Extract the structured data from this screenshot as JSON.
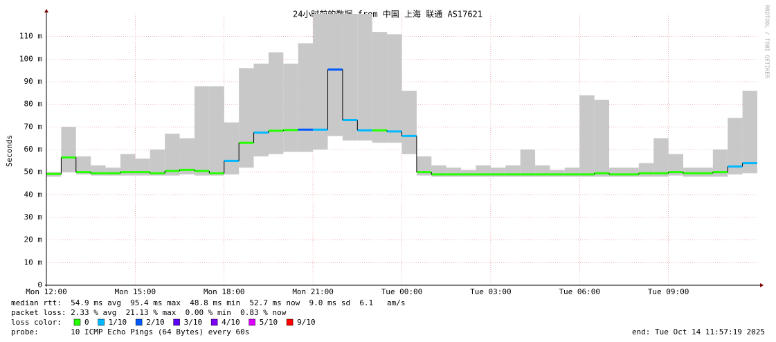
{
  "chart_data": {
    "type": "smokeping",
    "title": "24小时前的数据 from 中国 上海 联通 AS17621",
    "y_label": "Seconds",
    "watermark": "RRDTOOL / TOBI OETIKER",
    "xlim": [
      0,
      24
    ],
    "xticks": [
      {
        "value": 0,
        "label": "Mon 12:00"
      },
      {
        "value": 3,
        "label": "Mon 15:00"
      },
      {
        "value": 6,
        "label": "Mon 18:00"
      },
      {
        "value": 9,
        "label": "Mon 21:00"
      },
      {
        "value": 12,
        "label": "Tue 00:00"
      },
      {
        "value": 15,
        "label": "Tue 03:00"
      },
      {
        "value": 18,
        "label": "Tue 06:00"
      },
      {
        "value": 21,
        "label": "Tue 09:00"
      }
    ],
    "ylim": [
      0,
      120
    ],
    "yticks": [
      0,
      {
        "value": 10,
        "label": "10 m"
      },
      {
        "value": 20,
        "label": "20 m"
      },
      {
        "value": 30,
        "label": "30 m"
      },
      {
        "value": 40,
        "label": "40 m"
      },
      {
        "value": 50,
        "label": "50 m"
      },
      {
        "value": 60,
        "label": "60 m"
      },
      {
        "value": 70,
        "label": "70 m"
      },
      {
        "value": 80,
        "label": "80 m"
      },
      {
        "value": 90,
        "label": "90 m"
      },
      {
        "value": 100,
        "label": "100 m"
      },
      {
        "value": 110,
        "label": "110 m"
      }
    ],
    "grid": true,
    "x": [
      0,
      0.5,
      1,
      1.5,
      2,
      2.5,
      3,
      3.5,
      4,
      4.5,
      5,
      5.5,
      6,
      6.5,
      7,
      7.5,
      8,
      8.5,
      9,
      9.5,
      10,
      10.5,
      11,
      11.5,
      12,
      12.5,
      13,
      13.5,
      14,
      14.5,
      15,
      15.5,
      16,
      16.5,
      17,
      17.5,
      18,
      18.5,
      19,
      19.5,
      20,
      20.5,
      21,
      21.5,
      22,
      22.5,
      23,
      23.5
    ],
    "median": [
      49.2,
      56.5,
      50,
      49.5,
      49.5,
      50,
      50,
      49.5,
      50.5,
      51,
      50.5,
      49.5,
      55,
      63,
      67.5,
      68.3,
      68.6,
      68.8,
      68.8,
      95.4,
      73,
      68.5,
      68.5,
      68,
      66,
      50,
      49,
      49,
      49,
      49,
      49,
      49,
      49,
      49,
      49,
      49,
      49,
      49.5,
      49,
      49,
      49.5,
      49.5,
      50,
      49.5,
      49.5,
      50,
      52.5,
      54
    ],
    "min": [
      48,
      50,
      49,
      48.5,
      48.5,
      48.5,
      48.5,
      48.5,
      48.5,
      49,
      48.5,
      48.5,
      49,
      52,
      57,
      58,
      59,
      59,
      60,
      66,
      64,
      64,
      63,
      63,
      58,
      48.5,
      48,
      48,
      48,
      48,
      48,
      48,
      48,
      48,
      48,
      48,
      48,
      48,
      48,
      48,
      48,
      48,
      48.5,
      48,
      48,
      48,
      49,
      49.5
    ],
    "max": [
      50,
      70,
      57,
      53,
      52,
      58,
      56,
      60,
      67,
      65,
      88,
      88,
      72,
      96,
      98,
      103,
      98,
      107,
      120,
      120,
      120,
      120,
      112,
      111,
      86,
      57,
      53,
      52,
      51,
      53,
      52,
      53,
      60,
      53,
      51,
      52,
      84,
      82,
      52,
      52,
      54,
      65,
      58,
      52,
      52,
      60,
      74,
      86
    ],
    "loss": [
      0,
      0,
      0,
      0,
      0,
      0,
      0,
      0,
      0,
      0,
      0,
      0,
      1,
      0,
      1,
      0,
      0,
      2,
      1,
      2,
      1,
      1,
      0,
      1,
      1,
      0,
      0,
      0,
      0,
      0,
      0,
      0,
      0,
      0,
      0,
      0,
      0,
      0,
      0,
      0,
      0,
      0,
      0,
      0,
      0,
      0,
      1,
      1
    ],
    "smoke_color": "#c8c8c8",
    "loss_legend_title": "loss color:",
    "loss_legend": [
      {
        "label": "0",
        "color": "#26ff00"
      },
      {
        "label": "1/10",
        "color": "#00b8ff"
      },
      {
        "label": "2/10",
        "color": "#0059ff"
      },
      {
        "label": "3/10",
        "color": "#5e00ff"
      },
      {
        "label": "4/10",
        "color": "#7e00ff"
      },
      {
        "label": "5/10",
        "color": "#dd00ff"
      },
      {
        "label": "9/10",
        "color": "#ff0000"
      }
    ],
    "stats": [
      "median rtt:  54.9 ms avg  95.4 ms max  48.8 ms min  52.7 ms now  9.0 ms sd  6.1   am/s",
      "packet loss: 2.33 % avg  21.13 % max  0.00 % min  0.83 % now"
    ],
    "probe": "probe:       10 ICMP Echo Pings (64 Bytes) every 60s",
    "end": "end: Tue Oct 14 11:57:19 2025"
  }
}
